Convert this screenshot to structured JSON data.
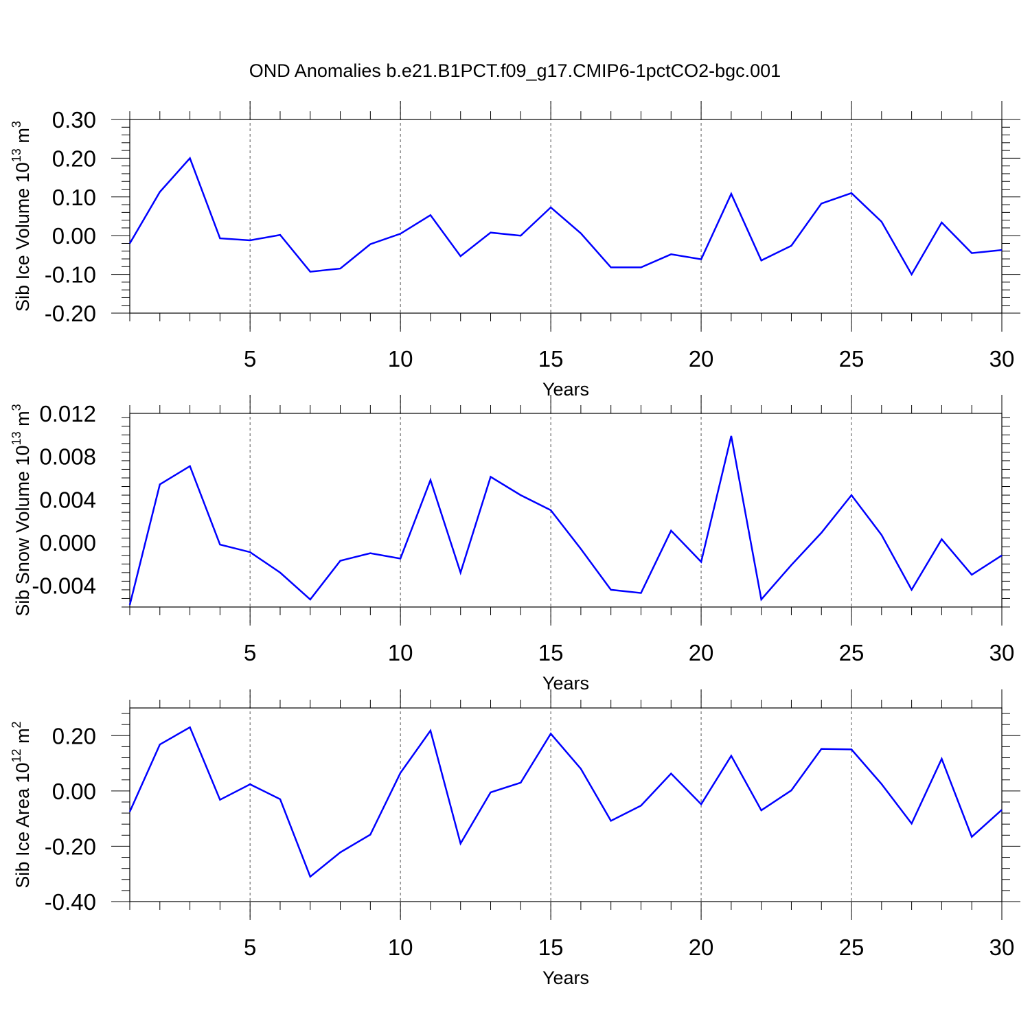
{
  "title": "OND Anomalies b.e21.B1PCT.f09_g17.CMIP6-1pctCO2-bgc.001",
  "chart_data": [
    {
      "type": "line",
      "title": "OND Anomalies b.e21.B1PCT.f09_g17.CMIP6-1pctCO2-bgc.001",
      "xlabel": "Years",
      "ylabel_main": "Sib Ice Volume 10",
      "ylabel_exp": "13",
      "ylabel_unit": " m",
      "ylabel_unit_exp": "3",
      "xlim": [
        1,
        30
      ],
      "ylim": [
        -0.2,
        0.3
      ],
      "yticks": [
        -0.2,
        -0.1,
        0.0,
        0.1,
        0.2,
        0.3
      ],
      "ytick_labels": [
        "-0.20",
        "-0.10",
        "0.00",
        "0.10",
        "0.20",
        "0.30"
      ],
      "xticks": [
        5,
        10,
        15,
        20,
        25,
        30
      ],
      "xtick_labels": [
        "5",
        "10",
        "15",
        "20",
        "25",
        "30"
      ],
      "series": [
        {
          "name": "Sib Ice Volume",
          "color": "#0000ff",
          "x": [
            1,
            2,
            3,
            4,
            5,
            6,
            7,
            8,
            9,
            10,
            11,
            12,
            13,
            14,
            15,
            16,
            17,
            18,
            19,
            20,
            21,
            22,
            23,
            24,
            25,
            26,
            27,
            28,
            29,
            30
          ],
          "values": [
            -0.02,
            0.113,
            0.2,
            -0.007,
            -0.012,
            0.002,
            -0.093,
            -0.085,
            -0.022,
            0.005,
            0.053,
            -0.053,
            0.008,
            0.0,
            0.073,
            0.006,
            -0.082,
            -0.082,
            -0.048,
            -0.061,
            0.108,
            -0.064,
            -0.026,
            0.083,
            0.11,
            0.036,
            -0.1,
            0.034,
            -0.045,
            -0.037
          ]
        }
      ]
    },
    {
      "type": "line",
      "xlabel": "Years",
      "ylabel_main": "Sib Snow Volume 10",
      "ylabel_exp": "13",
      "ylabel_unit": " m",
      "ylabel_unit_exp": "3",
      "xlim": [
        1,
        30
      ],
      "ylim": [
        -0.006,
        0.012
      ],
      "yticks": [
        -0.004,
        0.0,
        0.004,
        0.008,
        0.012
      ],
      "ytick_labels": [
        "-0.004",
        "0.000",
        "0.004",
        "0.008",
        "0.012"
      ],
      "xticks": [
        5,
        10,
        15,
        20,
        25,
        30
      ],
      "xtick_labels": [
        "5",
        "10",
        "15",
        "20",
        "25",
        "30"
      ],
      "series": [
        {
          "name": "Sib Snow Volume",
          "color": "#0000ff",
          "x": [
            1,
            2,
            3,
            4,
            5,
            6,
            7,
            8,
            9,
            10,
            11,
            12,
            13,
            14,
            15,
            16,
            17,
            18,
            19,
            20,
            21,
            22,
            23,
            24,
            25,
            26,
            27,
            28,
            29,
            30
          ],
          "values": [
            -0.0058,
            0.0054,
            0.0071,
            -0.0002,
            -0.0009,
            -0.0028,
            -0.0053,
            -0.0017,
            -0.001,
            -0.0015,
            0.0058,
            -0.0028,
            0.0061,
            0.0044,
            0.003,
            -0.0006,
            -0.0044,
            -0.0047,
            0.0011,
            -0.0018,
            0.0099,
            -0.0053,
            -0.0021,
            0.0009,
            0.0044,
            0.0007,
            -0.0044,
            0.0003,
            -0.003,
            -0.0012
          ]
        }
      ]
    },
    {
      "type": "line",
      "xlabel": "Years",
      "ylabel_main": "Sib Ice Area 10",
      "ylabel_exp": "12",
      "ylabel_unit": " m",
      "ylabel_unit_exp": "2",
      "xlim": [
        1,
        30
      ],
      "ylim": [
        -0.4,
        0.3
      ],
      "yticks": [
        -0.4,
        -0.2,
        0.0,
        0.2
      ],
      "ytick_labels": [
        "-0.40",
        "-0.20",
        "0.00",
        "0.20"
      ],
      "xticks": [
        5,
        10,
        15,
        20,
        25,
        30
      ],
      "xtick_labels": [
        "5",
        "10",
        "15",
        "20",
        "25",
        "30"
      ],
      "series": [
        {
          "name": "Sib Ice Area",
          "color": "#0000ff",
          "x": [
            1,
            2,
            3,
            4,
            5,
            6,
            7,
            8,
            9,
            10,
            11,
            12,
            13,
            14,
            15,
            16,
            17,
            18,
            19,
            20,
            21,
            22,
            23,
            24,
            25,
            26,
            27,
            28,
            29,
            30
          ],
          "values": [
            -0.075,
            0.168,
            0.23,
            -0.032,
            0.024,
            -0.03,
            -0.31,
            -0.222,
            -0.158,
            0.065,
            0.218,
            -0.19,
            -0.005,
            0.03,
            0.207,
            0.08,
            -0.108,
            -0.053,
            0.063,
            -0.048,
            0.127,
            -0.07,
            0.002,
            0.152,
            0.15,
            0.025,
            -0.118,
            0.116,
            -0.166,
            -0.068
          ]
        }
      ]
    }
  ]
}
